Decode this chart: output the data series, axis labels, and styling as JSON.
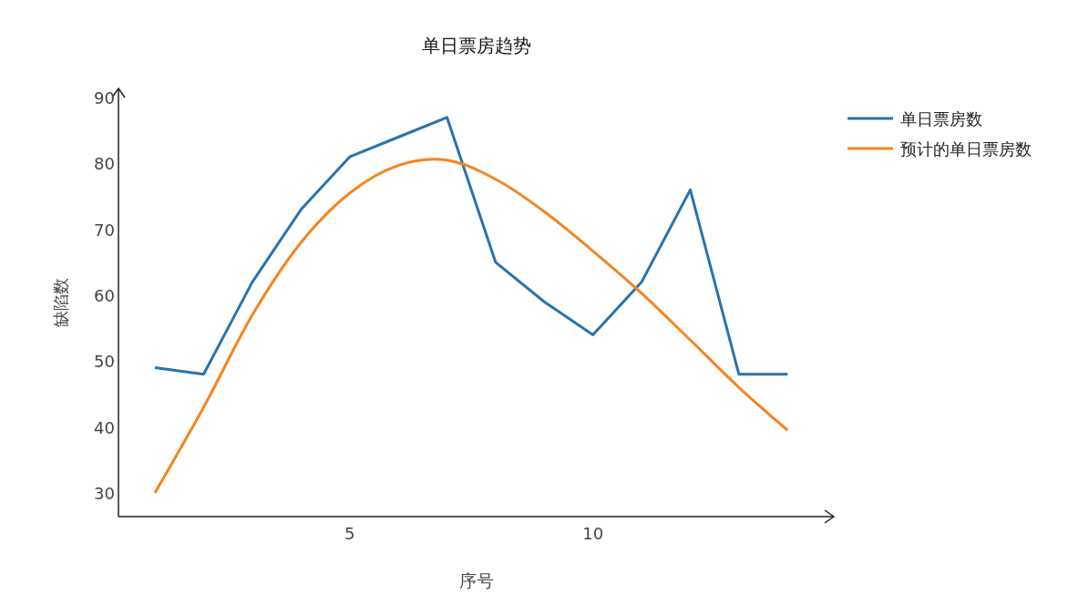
{
  "chart_data": {
    "type": "line",
    "title": "单日票房趋势",
    "xlabel": "序号",
    "ylabel": "缺陷数",
    "x": [
      1,
      2,
      3,
      4,
      5,
      6,
      7,
      8,
      9,
      10,
      11,
      12,
      13,
      14
    ],
    "series": [
      {
        "name": "单日票房数",
        "color": "#2873ae",
        "values": [
          49,
          48,
          62,
          73,
          81,
          84,
          87,
          65,
          59,
          54,
          62,
          76,
          48,
          48
        ]
      },
      {
        "name": "预计的单日票房数",
        "color": "#f5841f",
        "values": [
          30,
          43,
          57,
          68,
          75.5,
          79.7,
          80.5,
          77.6,
          72.7,
          66.7,
          60.3,
          53.2,
          46,
          39.5
        ]
      }
    ],
    "xlim": [
      0.25,
      14.95
    ],
    "ylim": [
      26.4,
      91.4
    ],
    "xticks": [
      5,
      10
    ],
    "yticks": [
      30,
      40,
      50,
      60,
      70,
      80,
      90
    ],
    "grid": false,
    "legend": "top right",
    "marker": "none"
  }
}
